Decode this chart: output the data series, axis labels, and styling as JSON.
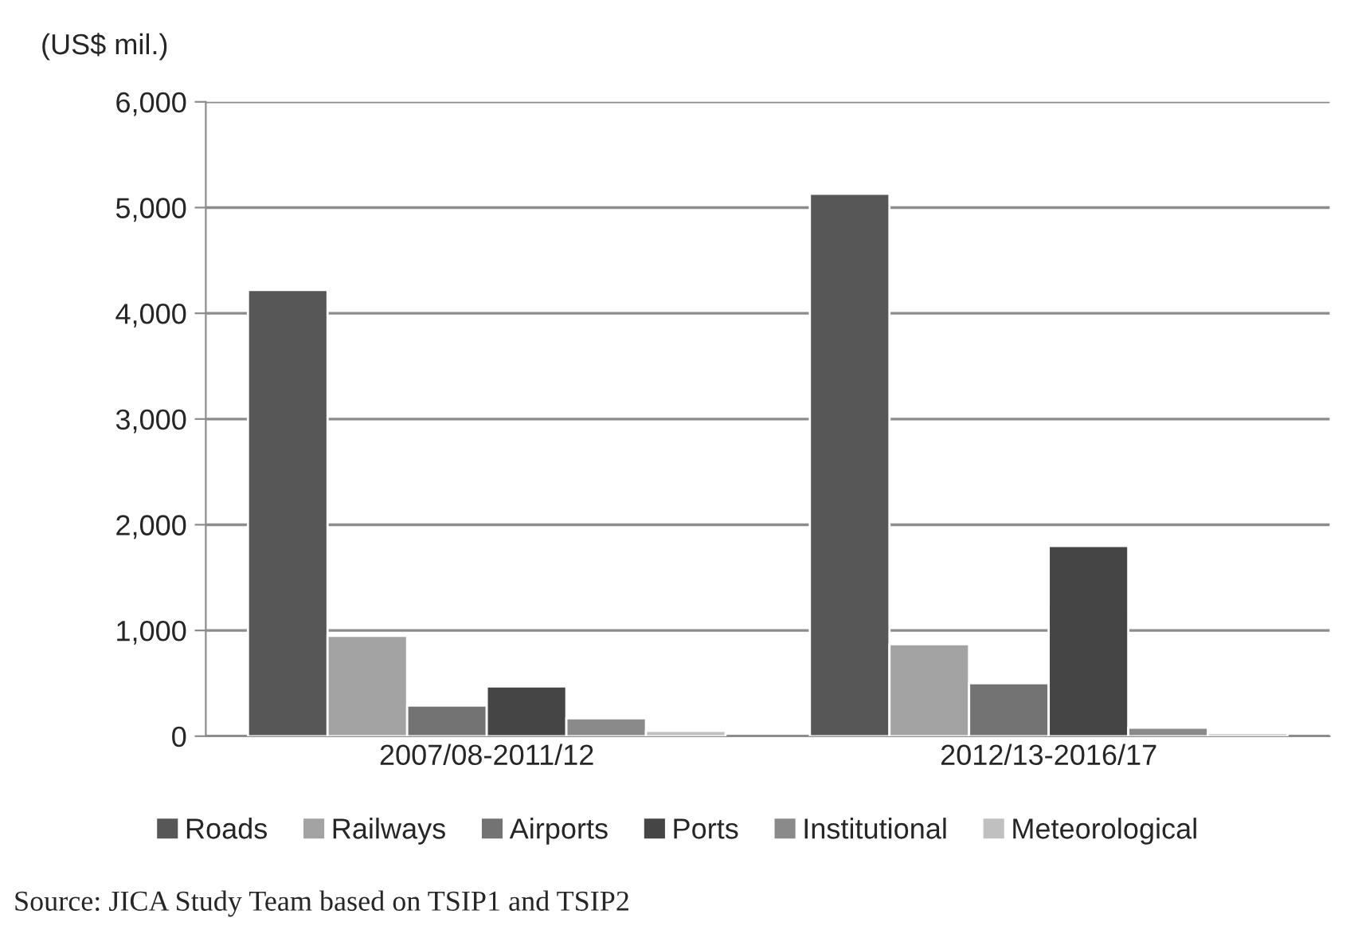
{
  "chart_data": {
    "type": "bar",
    "ylabel": "(US$ mil.)",
    "categories": [
      "2007/08-2011/12",
      "2012/13-2016/17"
    ],
    "series": [
      {
        "name": "Roads",
        "color": "#575757",
        "values": [
          4220,
          5130
        ]
      },
      {
        "name": "Railways",
        "color": "#a3a3a3",
        "values": [
          950,
          870
        ]
      },
      {
        "name": "Airports",
        "color": "#737373",
        "values": [
          290,
          500
        ]
      },
      {
        "name": "Ports",
        "color": "#454545",
        "values": [
          470,
          1800
        ]
      },
      {
        "name": "Institutional",
        "color": "#8a8a8a",
        "values": [
          170,
          80
        ]
      },
      {
        "name": "Meteorological",
        "color": "#c0c0c0",
        "values": [
          50,
          30
        ]
      }
    ],
    "ylim": [
      0,
      6000
    ],
    "yticks": [
      {
        "value": 0,
        "label": "0"
      },
      {
        "value": 1000,
        "label": "1,000"
      },
      {
        "value": 2000,
        "label": "2,000"
      },
      {
        "value": 3000,
        "label": "3,000"
      },
      {
        "value": 4000,
        "label": "4,000"
      },
      {
        "value": 5000,
        "label": "5,000"
      },
      {
        "value": 6000,
        "label": "6,000"
      }
    ],
    "grid": "y",
    "legend": "bottom",
    "annotations": [
      "Source: JICA Study Team based on TSIP1 and TSIP2"
    ]
  }
}
